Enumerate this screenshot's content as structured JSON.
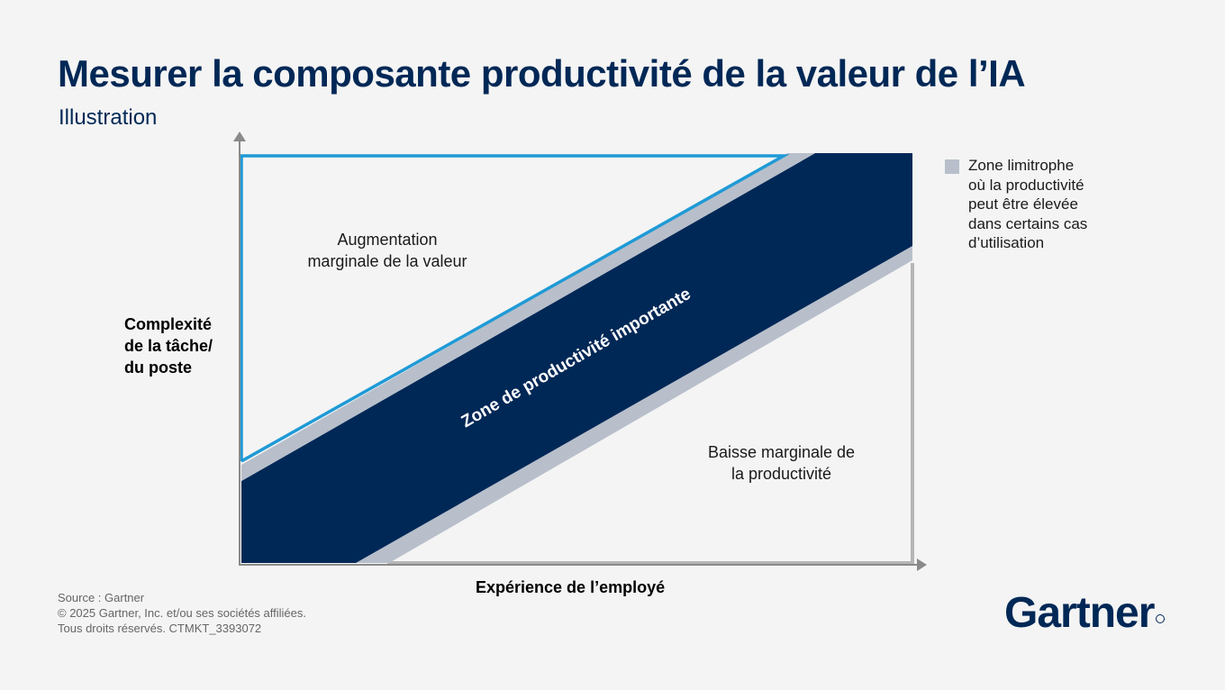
{
  "header": {
    "title": "Mesurer la composante productivité de la valeur de l’IA",
    "subtitle": "Illustration"
  },
  "diagram": {
    "y_axis_label": [
      "Complexité",
      "de la tâche/",
      "du poste"
    ],
    "x_axis_label": "Expérience de l’employé",
    "upper_zone_label": [
      "Augmentation",
      "marginale de la valeur"
    ],
    "band_label": "Zone de productivité importante",
    "lower_zone_label": [
      "Baisse marginale de",
      "la productivité"
    ],
    "legend": {
      "lines": [
        "Zone limitrophe",
        "où la productivité",
        "peut être élevée",
        "dans certains cas",
        "d’utilisation"
      ],
      "swatch_color": "#b8bfcb"
    },
    "colors": {
      "band": "#002856",
      "border_zone": "#b8bfcb",
      "upper_outline": "#1f9ad6",
      "lower_outline": "#b5b5b5",
      "axis": "#8a8a8a"
    }
  },
  "footer": {
    "lines": [
      "Source : Gartner",
      "© 2025 Gartner, Inc. et/ou ses sociétés affiliées.",
      "Tous droits réservés. CTMKT_3393072"
    ]
  },
  "logo": {
    "text": "Gartner"
  }
}
